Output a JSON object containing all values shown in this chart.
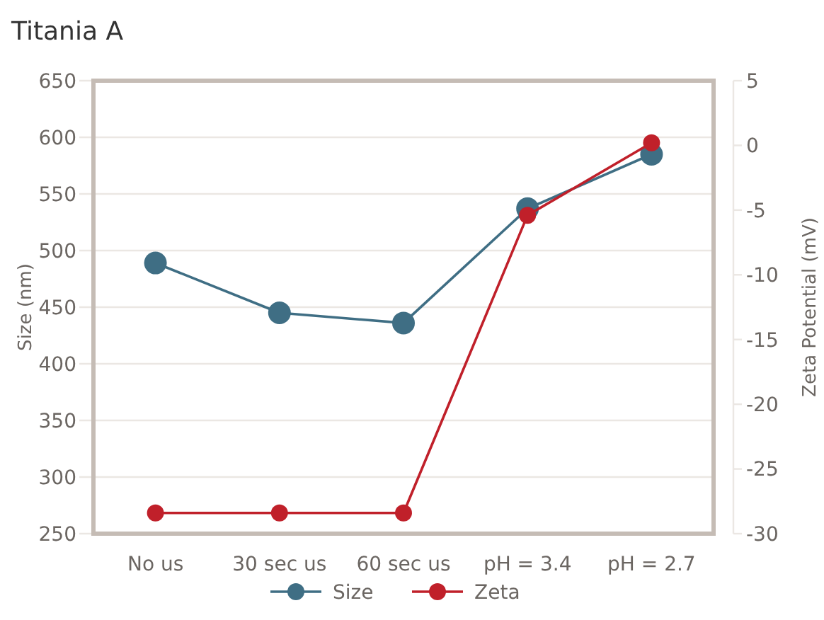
{
  "chart_data": {
    "type": "line",
    "title": "Titania A",
    "ylabel": "Size (nm)",
    "y2label": "Zeta Potential (mV)",
    "categories": [
      "No us",
      "30 sec us",
      "60 sec us",
      "pH = 3.4",
      "pH = 2.7"
    ],
    "series": [
      {
        "name": "Size",
        "color": "#3f6e84",
        "values": [
          489,
          445,
          436,
          537,
          585
        ]
      },
      {
        "name": "Zeta",
        "color": "#c0202a",
        "axis": "y2",
        "values": [
          -28.4,
          -28.4,
          -28.4,
          -5.4,
          0.2
        ]
      }
    ],
    "ylim": [
      250,
      650
    ],
    "yticks": [
      250,
      300,
      350,
      400,
      450,
      500,
      550,
      600,
      650
    ],
    "y2lim": [
      -30,
      5
    ],
    "y2ticks": [
      -30,
      -25,
      -20,
      -15,
      -10,
      -5,
      0,
      5
    ],
    "grid": "y",
    "legend": "bottom",
    "marker": "circle",
    "line_style": "solid"
  }
}
